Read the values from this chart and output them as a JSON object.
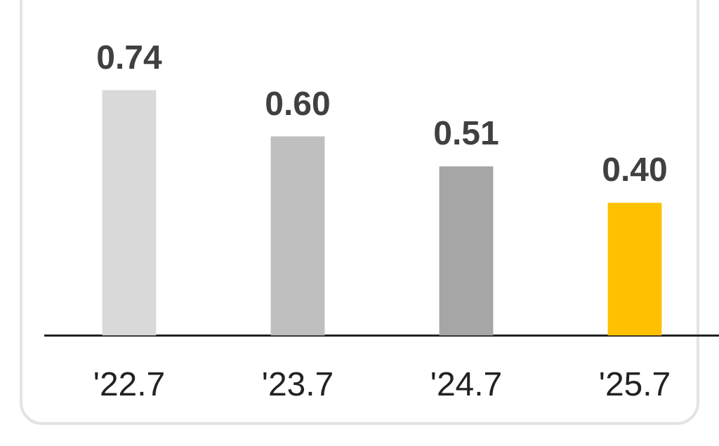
{
  "chart_data": {
    "type": "bar",
    "categories": [
      "'22.7",
      "'23.7",
      "'24.7",
      "'25.7"
    ],
    "values": [
      0.74,
      0.6,
      0.51,
      0.4
    ],
    "colors": [
      "#d9d9d9",
      "#bfbfbf",
      "#a6a6a6",
      "#ffc000"
    ],
    "value_labels": [
      "0.74",
      "0.60",
      "0.51",
      "0.40"
    ],
    "grid": false,
    "legend": false
  }
}
